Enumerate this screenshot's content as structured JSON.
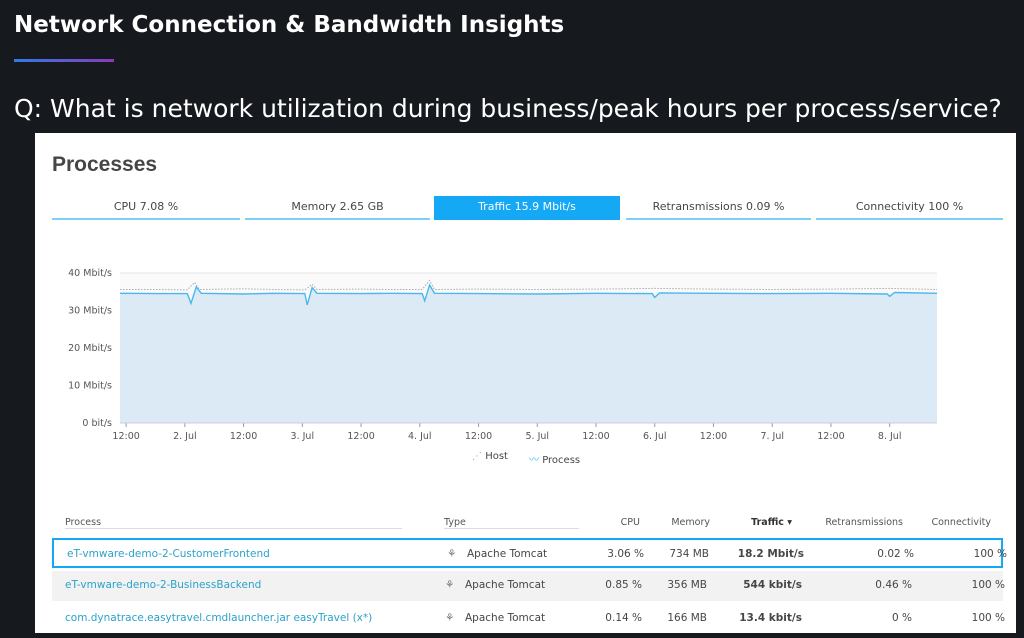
{
  "title": "Network Connection & Bandwidth Insights",
  "question": "Q: What is network utilization during business/peak hours per process/service?",
  "panel": {
    "heading": "Processes",
    "tabs": [
      {
        "label": "CPU 7.08 %",
        "active": false
      },
      {
        "label": "Memory 2.65 GB",
        "active": false
      },
      {
        "label": "Traffic 15.9 Mbit/s",
        "active": true
      },
      {
        "label": "Retransmissions 0.09 %",
        "active": false
      },
      {
        "label": "Connectivity 100 %",
        "active": false
      }
    ]
  },
  "chart_data": {
    "type": "area",
    "ylim": [
      0,
      40
    ],
    "y_ticks": [
      "0 bit/s",
      "10 Mbit/s",
      "20 Mbit/s",
      "30 Mbit/s",
      "40 Mbit/s"
    ],
    "x_ticks": [
      "12:00",
      "2. Jul",
      "12:00",
      "3. Jul",
      "12:00",
      "4. Jul",
      "12:00",
      "5. Jul",
      "12:00",
      "6. Jul",
      "12:00",
      "7. Jul",
      "12:00",
      "8. Jul"
    ],
    "x_range": [
      "07-01 10:45",
      "07-08 09:40"
    ],
    "grid": true,
    "legend": "bottom",
    "colors": {
      "process": "#4ab8ee",
      "fill": "#dbeaf5",
      "host": "#aaaaaa"
    },
    "series": [
      {
        "name": "Host",
        "style": "dotted",
        "points": [
          [
            "07-01 10:45",
            35.6
          ],
          [
            "07-01 18:00",
            35.6
          ],
          [
            "07-02 00:30",
            35.5
          ],
          [
            "07-02 02:00",
            37.5
          ],
          [
            "07-02 03:00",
            35.6
          ],
          [
            "07-02 12:00",
            35.8
          ],
          [
            "07-02 18:00",
            35.6
          ],
          [
            "07-03 00:30",
            35.5
          ],
          [
            "07-03 02:00",
            37
          ],
          [
            "07-03 03:00",
            35.6
          ],
          [
            "07-03 12:00",
            35.7
          ],
          [
            "07-03 18:00",
            35.6
          ],
          [
            "07-04 00:30",
            35.6
          ],
          [
            "07-04 02:00",
            38
          ],
          [
            "07-04 03:00",
            35.6
          ],
          [
            "07-04 12:00",
            35.7
          ],
          [
            "07-05 00:00",
            35.6
          ],
          [
            "07-05 12:00",
            35.7
          ],
          [
            "07-06 00:00",
            35.9
          ],
          [
            "07-06 12:00",
            35.7
          ],
          [
            "07-07 00:00",
            35.6
          ],
          [
            "07-07 12:00",
            35.7
          ],
          [
            "07-08 00:00",
            35.9
          ],
          [
            "07-08 09:40",
            35.6
          ]
        ]
      },
      {
        "name": "Process",
        "points": [
          [
            "07-01 10:45",
            34.6
          ],
          [
            "07-01 18:00",
            34.5
          ],
          [
            "07-02 00:30",
            34.5
          ],
          [
            "07-02 01:15",
            31.9
          ],
          [
            "07-02 02:20",
            36.3
          ],
          [
            "07-02 03:20",
            34.6
          ],
          [
            "07-02 12:00",
            34.4
          ],
          [
            "07-02 18:00",
            34.6
          ],
          [
            "07-03 00:30",
            34.5
          ],
          [
            "07-03 01:00",
            31.5
          ],
          [
            "07-03 02:00",
            36.1
          ],
          [
            "07-03 03:00",
            34.6
          ],
          [
            "07-03 12:00",
            34.5
          ],
          [
            "07-03 18:00",
            34.6
          ],
          [
            "07-04 00:30",
            34.5
          ],
          [
            "07-04 01:00",
            32.6
          ],
          [
            "07-04 02:00",
            36.8
          ],
          [
            "07-04 03:00",
            34.6
          ],
          [
            "07-04 12:00",
            34.5
          ],
          [
            "07-05 00:00",
            34.4
          ],
          [
            "07-05 12:00",
            34.6
          ],
          [
            "07-05 23:30",
            34.5
          ],
          [
            "07-06 00:00",
            33.5
          ],
          [
            "07-06 01:00",
            34.7
          ],
          [
            "07-06 12:00",
            34.6
          ],
          [
            "07-07 00:00",
            34.5
          ],
          [
            "07-07 12:00",
            34.6
          ],
          [
            "07-07 23:30",
            34.4
          ],
          [
            "07-08 00:00",
            33.8
          ],
          [
            "07-08 01:00",
            34.8
          ],
          [
            "07-08 09:40",
            34.6
          ]
        ]
      }
    ]
  },
  "legend": {
    "host": "Host",
    "process": "Process"
  },
  "table": {
    "headers": [
      "Process",
      "Type",
      "CPU",
      "Memory",
      "Traffic ▾",
      "Retransmissions",
      "Connectivity"
    ],
    "rows": [
      [
        "eT-vmware-demo-2-CustomerFrontend",
        "Apache Tomcat",
        "3.06 %",
        "734 MB",
        "18.2 Mbit/s",
        "0.02 %",
        "100 %"
      ],
      [
        "eT-vmware-demo-2-BusinessBackend",
        "Apache Tomcat",
        "0.85 %",
        "356 MB",
        "544 kbit/s",
        "0.46 %",
        "100 %"
      ],
      [
        "com.dynatrace.easytravel.cmdlauncher.jar easyTravel (x*)",
        "Apache Tomcat",
        "0.14 %",
        "166 MB",
        "13.4 kbit/s",
        "0 %",
        "100 %"
      ]
    ]
  }
}
